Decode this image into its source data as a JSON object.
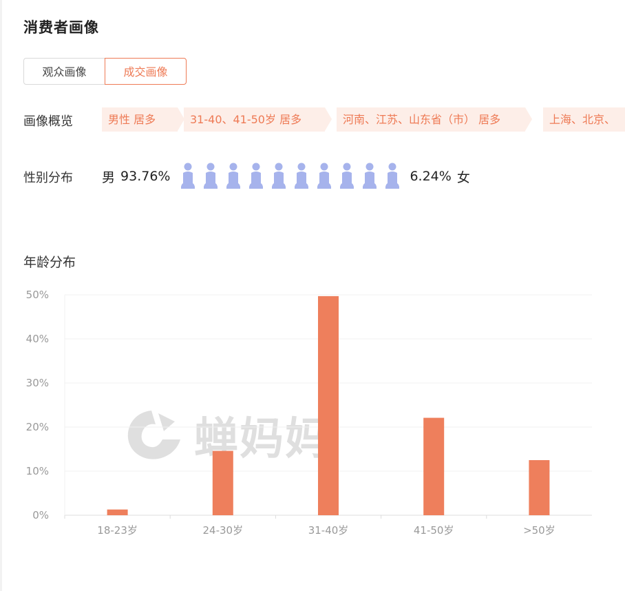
{
  "section_title": "消费者画像",
  "tabs": [
    {
      "label": "观众画像",
      "active": false
    },
    {
      "label": "成交画像",
      "active": true
    }
  ],
  "overview": {
    "label": "画像概览",
    "tags": [
      "男性 居多",
      "31-40、41-50岁 居多",
      "河南、江苏、山东省（市） 居多",
      "上海、北京、"
    ]
  },
  "gender": {
    "label": "性别分布",
    "male_label": "男",
    "male_percent": "93.76%",
    "female_percent": "6.24%",
    "female_label": "女",
    "icon_count": 10,
    "icon_color": "#a6b3ec"
  },
  "age_section_title": "年龄分布",
  "watermark_text": "蝉妈妈",
  "colors": {
    "accent": "#ee7a55",
    "bar": "#ee7f5c"
  },
  "chart_data": {
    "type": "bar",
    "categories": [
      "18-23岁",
      "24-30岁",
      "31-40岁",
      "41-50岁",
      ">50岁"
    ],
    "values": [
      1.3,
      14.6,
      49.7,
      22.1,
      12.5
    ],
    "ylim": [
      0,
      50
    ],
    "yticks": [
      "0%",
      "10%",
      "20%",
      "30%",
      "40%",
      "50%"
    ],
    "grid": true,
    "title": "",
    "xlabel": "",
    "ylabel": ""
  }
}
